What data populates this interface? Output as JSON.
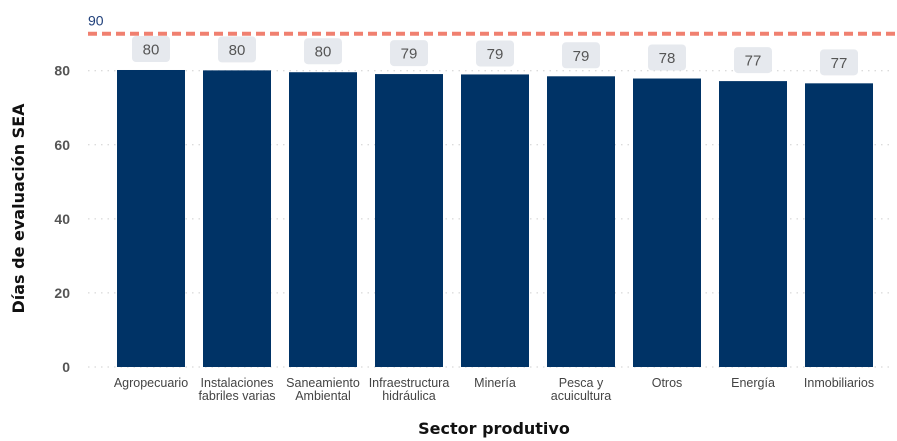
{
  "chart_data": {
    "type": "bar",
    "categories": [
      [
        "Agropecuario"
      ],
      [
        "Instalaciones",
        "fabriles varias"
      ],
      [
        "Saneamiento",
        "Ambiental"
      ],
      [
        "Infraestructura",
        "hidráulica"
      ],
      [
        "Minería"
      ],
      [
        "Pesca y",
        "acuicultura"
      ],
      [
        "Otros"
      ],
      [
        "Energía"
      ],
      [
        "Inmobiliarios"
      ]
    ],
    "values": [
      80.2,
      80.1,
      79.6,
      79.1,
      79.0,
      78.5,
      77.9,
      77.2,
      76.6
    ],
    "data_labels": [
      "80",
      "80",
      "80",
      "79",
      "79",
      "79",
      "78",
      "77",
      "77"
    ],
    "xlabel": "Sector produtivo",
    "ylabel": "Días de evaluación SEA",
    "ylim": [
      0,
      91
    ],
    "yticks": [
      0,
      20,
      40,
      60,
      80
    ],
    "reference_line": {
      "value": 90,
      "label": "90"
    },
    "grid": true,
    "colors": {
      "bar": "#003366",
      "reference_line": "#f08070",
      "reference_label": "#1f3f7a",
      "label_box": "#e6e9ee",
      "grid": "#cfcfcf"
    }
  }
}
